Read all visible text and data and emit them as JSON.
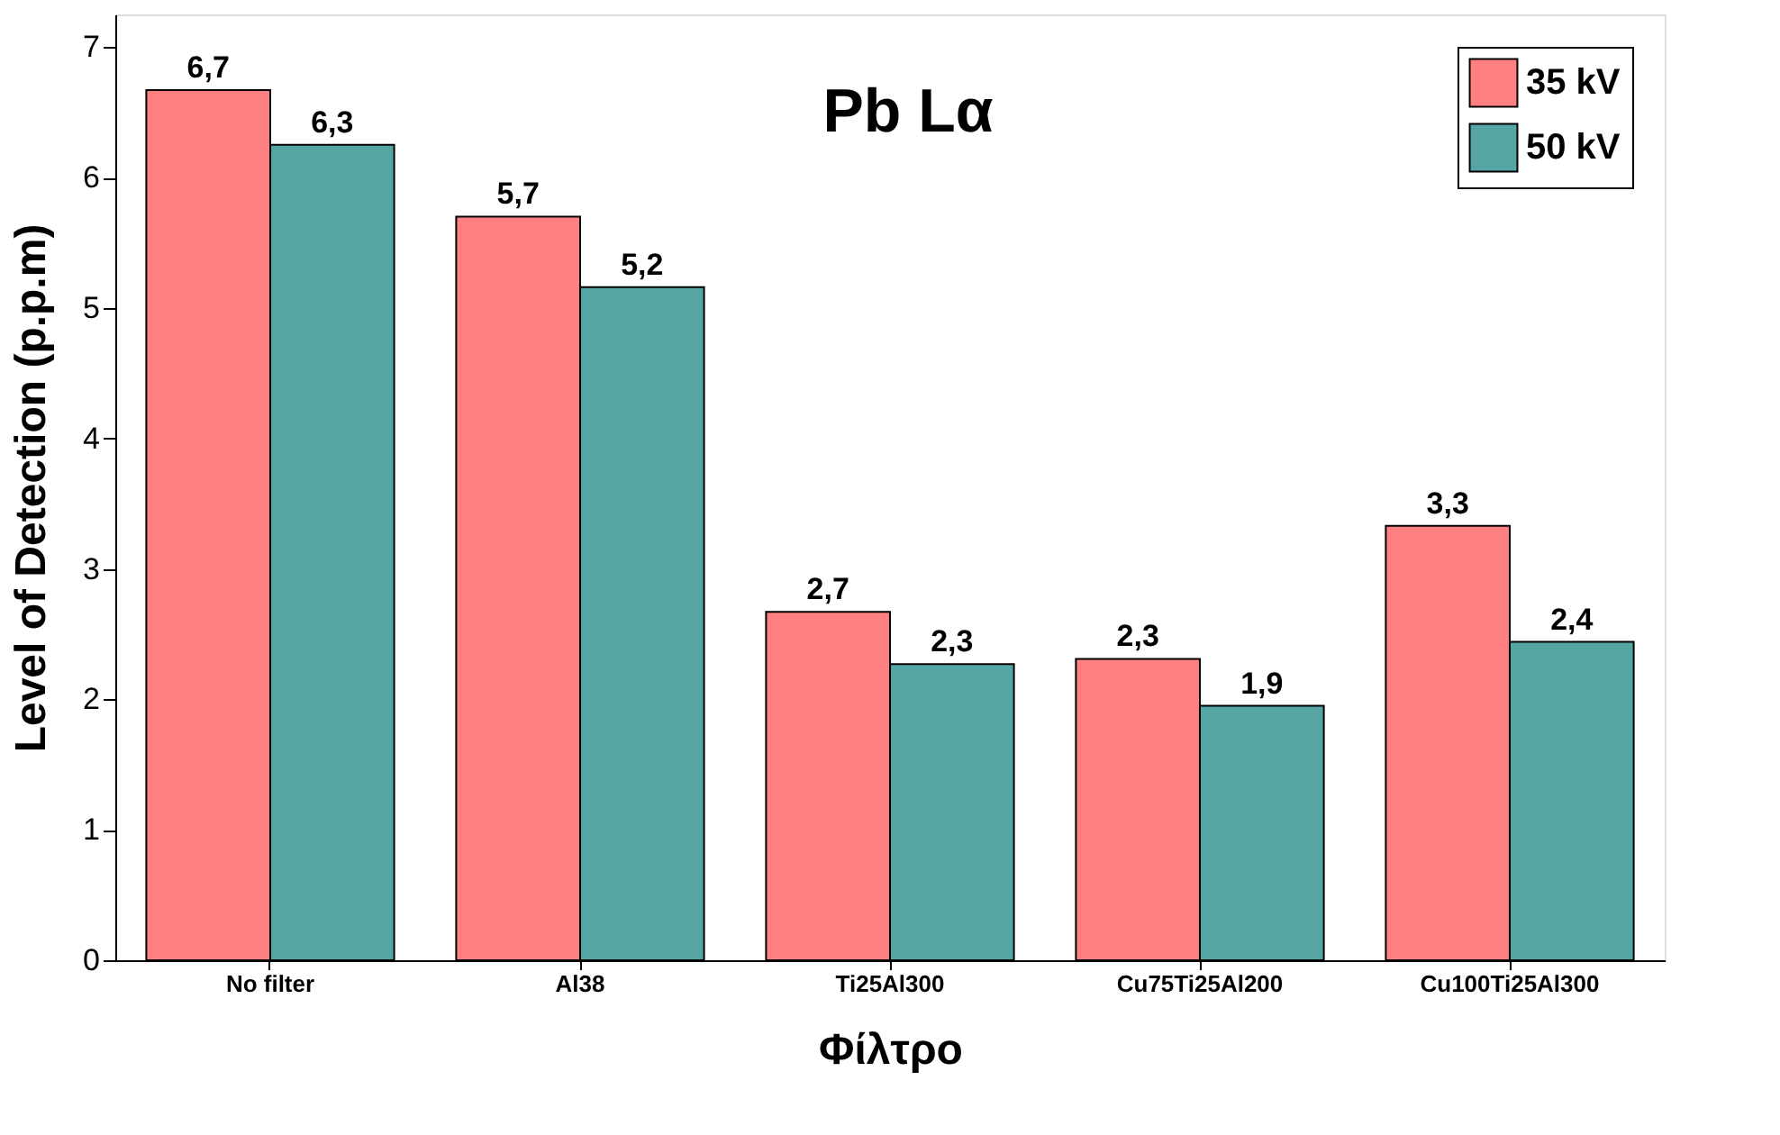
{
  "chart_data": {
    "type": "bar",
    "title": "Pb Lα",
    "xlabel": "Φίλτρο",
    "ylabel": "Level of Detection (p.p.m)",
    "categories": [
      "No filter",
      "Al38",
      "Ti25Al300",
      "Cu75Ti25Al200",
      "Cu100Ti25Al300"
    ],
    "series": [
      {
        "name": "35 kV",
        "color": "#ff8080",
        "values": [
          6.67,
          5.7,
          2.67,
          2.31,
          3.33
        ],
        "value_labels": [
          "6,7",
          "5,7",
          "2,7",
          "2,3",
          "3,3"
        ]
      },
      {
        "name": "50 kV",
        "color": "#55a5a5",
        "values": [
          6.25,
          5.16,
          2.27,
          1.95,
          2.44
        ],
        "value_labels": [
          "6,3",
          "5,2",
          "2,3",
          "1,9",
          "2,4"
        ]
      }
    ],
    "ylim": [
      0,
      7.25
    ],
    "yticks": [
      0,
      1,
      2,
      3,
      4,
      5,
      6,
      7
    ],
    "grid": false,
    "legend": "top right"
  }
}
